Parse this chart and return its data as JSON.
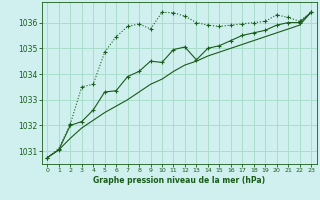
{
  "title": "Graphe pression niveau de la mer (hPa)",
  "bg_color": "#cff0ee",
  "grid_color": "#aaddcc",
  "line_color": "#1a5c1a",
  "xlim": [
    -0.5,
    23.5
  ],
  "ylim": [
    1030.5,
    1036.8
  ],
  "yticks": [
    1031,
    1032,
    1033,
    1034,
    1035,
    1036
  ],
  "xticks": [
    0,
    1,
    2,
    3,
    4,
    5,
    6,
    7,
    8,
    9,
    10,
    11,
    12,
    13,
    14,
    15,
    16,
    17,
    18,
    19,
    20,
    21,
    22,
    23
  ],
  "series1": {
    "x": [
      0,
      1,
      2,
      3,
      4,
      5,
      6,
      7,
      8,
      9,
      10,
      11,
      12,
      13,
      14,
      15,
      16,
      17,
      18,
      19,
      20,
      21,
      22,
      23
    ],
    "y": [
      1030.75,
      1031.1,
      1032.05,
      1033.5,
      1033.6,
      1034.85,
      1035.45,
      1035.85,
      1035.95,
      1035.75,
      1036.4,
      1036.38,
      1036.25,
      1036.0,
      1035.9,
      1035.85,
      1035.9,
      1035.95,
      1036.0,
      1036.05,
      1036.3,
      1036.2,
      1036.05,
      1036.4
    ]
  },
  "series2": {
    "x": [
      0,
      1,
      2,
      3,
      4,
      5,
      6,
      7,
      8,
      9,
      10,
      11,
      12,
      13,
      14,
      15,
      16,
      17,
      18,
      19,
      20,
      21,
      22,
      23
    ],
    "y": [
      1030.75,
      1031.05,
      1032.0,
      1032.15,
      1032.6,
      1033.3,
      1033.35,
      1033.9,
      1034.1,
      1034.5,
      1034.45,
      1034.95,
      1035.05,
      1034.55,
      1035.0,
      1035.1,
      1035.3,
      1035.5,
      1035.6,
      1035.7,
      1035.9,
      1036.0,
      1036.0,
      1036.4
    ]
  },
  "series3": {
    "x": [
      0,
      1,
      2,
      3,
      4,
      5,
      6,
      7,
      8,
      9,
      10,
      11,
      12,
      13,
      14,
      15,
      16,
      17,
      18,
      19,
      20,
      21,
      22,
      23
    ],
    "y": [
      1030.75,
      1031.05,
      1031.5,
      1031.9,
      1032.2,
      1032.5,
      1032.75,
      1033.0,
      1033.3,
      1033.6,
      1033.8,
      1034.1,
      1034.35,
      1034.5,
      1034.7,
      1034.85,
      1035.0,
      1035.15,
      1035.3,
      1035.45,
      1035.6,
      1035.75,
      1035.9,
      1036.4
    ]
  }
}
